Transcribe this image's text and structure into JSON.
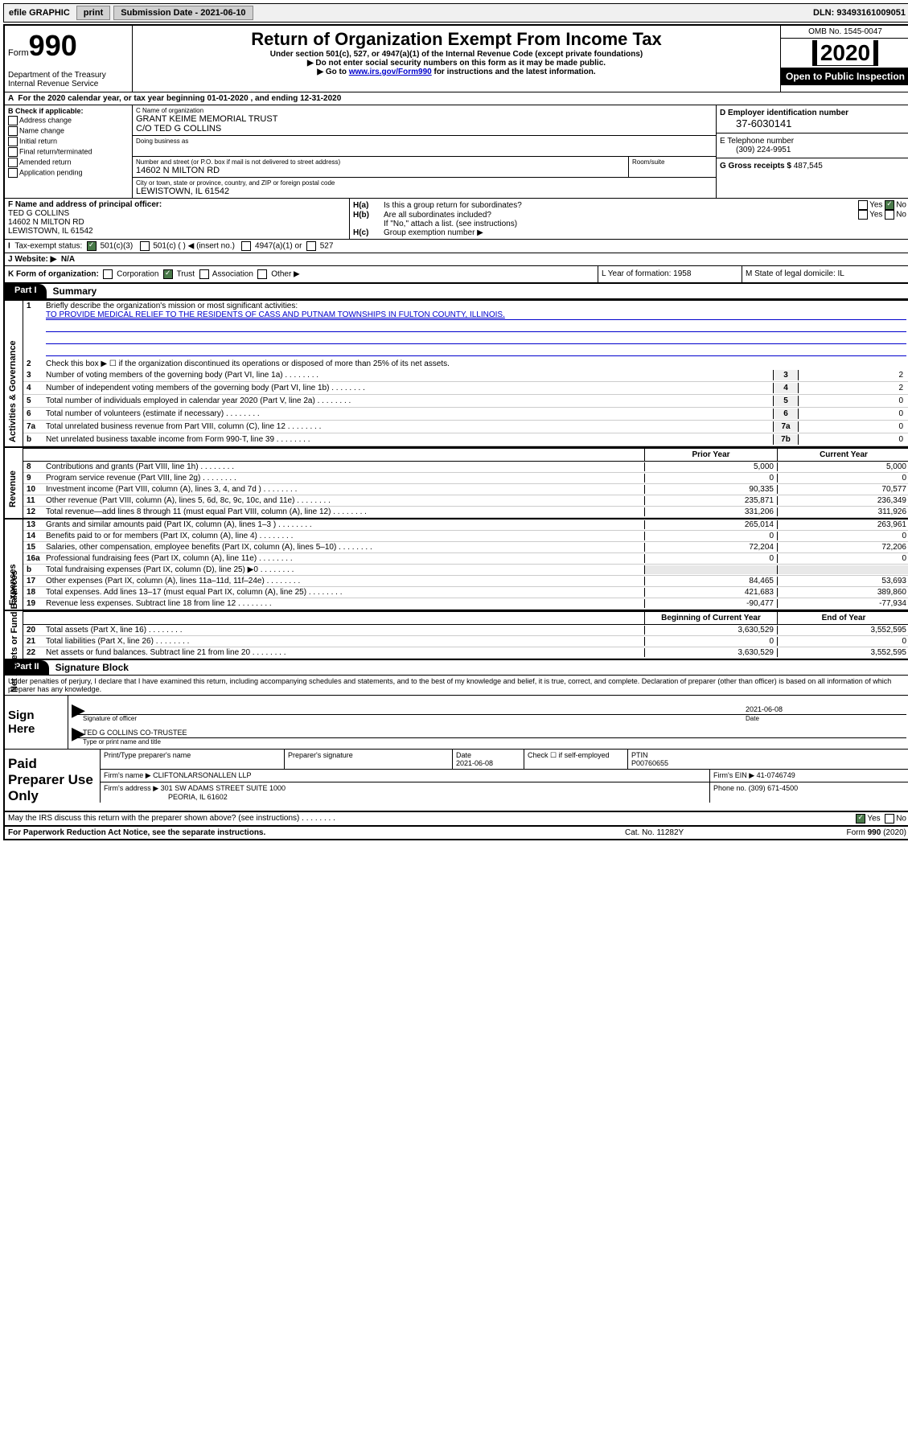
{
  "topbar": {
    "efile": "efile GRAPHIC",
    "print": "print",
    "subdate_label": "Submission Date - ",
    "subdate": "2021-06-10",
    "dln": "DLN: 93493161009051"
  },
  "header": {
    "form_label": "Form",
    "form_num": "990",
    "dept": "Department of the Treasury\nInternal Revenue Service",
    "title": "Return of Organization Exempt From Income Tax",
    "subtitle": "Under section 501(c), 527, or 4947(a)(1) of the Internal Revenue Code (except private foundations)",
    "note1": "Do not enter social security numbers on this form as it may be made public.",
    "note2_pre": "Go to ",
    "note2_link": "www.irs.gov/Form990",
    "note2_post": " for instructions and the latest information.",
    "omb": "OMB No. 1545-0047",
    "year": "2020",
    "open": "Open to Public Inspection"
  },
  "row_a": "For the 2020 calendar year, or tax year beginning 01-01-2020   , and ending 12-31-2020",
  "col_b": {
    "label": "B Check if applicable:",
    "items": [
      "Address change",
      "Name change",
      "Initial return",
      "Final return/terminated",
      "Amended return",
      "Application pending"
    ]
  },
  "org": {
    "name_label": "C Name of organization",
    "name": "GRANT KEIME MEMORIAL TRUST",
    "co": "C/O TED G COLLINS",
    "dba_label": "Doing business as",
    "addr_label": "Number and street (or P.O. box if mail is not delivered to street address)",
    "room_label": "Room/suite",
    "addr": "14602 N MILTON RD",
    "city_label": "City or town, state or province, country, and ZIP or foreign postal code",
    "city": "LEWISTOWN, IL  61542"
  },
  "right_col": {
    "ein_label": "D Employer identification number",
    "ein": "37-6030141",
    "tel_label": "E Telephone number",
    "tel": "(309) 224-9951",
    "gross_label": "G Gross receipts $ ",
    "gross": "487,545"
  },
  "officer": {
    "label": "F  Name and address of principal officer:",
    "name": "TED G COLLINS",
    "addr1": "14602 N MILTON RD",
    "addr2": "LEWISTOWN, IL  61542"
  },
  "h_section": {
    "ha": "Is this a group return for subordinates?",
    "hb": "Are all subordinates included?",
    "hb_note": "If \"No,\" attach a list. (see instructions)",
    "hc": "Group exemption number ▶",
    "yes": "Yes",
    "no": "No"
  },
  "status": {
    "label": "Tax-exempt status:",
    "c3": "501(c)(3)",
    "c": "501(c) (  ) ◀ (insert no.)",
    "a1": "4947(a)(1) or",
    "s527": "527"
  },
  "website": {
    "label": "J   Website: ▶",
    "val": "N/A"
  },
  "k_row": {
    "label": "K Form of organization:",
    "corp": "Corporation",
    "trust": "Trust",
    "assoc": "Association",
    "other": "Other ▶",
    "l": "L Year of formation: 1958",
    "m": "M State of legal domicile: IL"
  },
  "part1": {
    "tab": "Part I",
    "title": "Summary"
  },
  "vtabs": {
    "gov": "Activities & Governance",
    "rev": "Revenue",
    "exp": "Expenses",
    "net": "Net Assets or Fund Balances"
  },
  "mission": {
    "label": "Briefly describe the organization's mission or most significant activities:",
    "text": "TO PROVIDE MEDICAL RELIEF TO THE RESIDENTS OF CASS AND PUTNAM TOWNSHIPS IN FULTON COUNTY, ILLINOIS."
  },
  "lines_single": {
    "2": "Check this box ▶ ☐  if the organization discontinued its operations or disposed of more than 25% of its net assets.",
    "3": {
      "text": "Number of voting members of the governing body (Part VI, line 1a)",
      "val": "2"
    },
    "4": {
      "text": "Number of independent voting members of the governing body (Part VI, line 1b)",
      "val": "2"
    },
    "5": {
      "text": "Total number of individuals employed in calendar year 2020 (Part V, line 2a)",
      "val": "0"
    },
    "6": {
      "text": "Total number of volunteers (estimate if necessary)",
      "val": "0"
    },
    "7a": {
      "text": "Total unrelated business revenue from Part VIII, column (C), line 12",
      "val": "0"
    },
    "7b": {
      "text": "Net unrelated business taxable income from Form 990-T, line 39",
      "val": "0"
    }
  },
  "col_headers": {
    "prior": "Prior Year",
    "curr": "Current Year",
    "boy": "Beginning of Current Year",
    "eoy": "End of Year"
  },
  "revenue": [
    {
      "n": "8",
      "t": "Contributions and grants (Part VIII, line 1h)",
      "p": "5,000",
      "c": "5,000"
    },
    {
      "n": "9",
      "t": "Program service revenue (Part VIII, line 2g)",
      "p": "0",
      "c": "0"
    },
    {
      "n": "10",
      "t": "Investment income (Part VIII, column (A), lines 3, 4, and 7d )",
      "p": "90,335",
      "c": "70,577"
    },
    {
      "n": "11",
      "t": "Other revenue (Part VIII, column (A), lines 5, 6d, 8c, 9c, 10c, and 11e)",
      "p": "235,871",
      "c": "236,349"
    },
    {
      "n": "12",
      "t": "Total revenue—add lines 8 through 11 (must equal Part VIII, column (A), line 12)",
      "p": "331,206",
      "c": "311,926"
    }
  ],
  "expenses": [
    {
      "n": "13",
      "t": "Grants and similar amounts paid (Part IX, column (A), lines 1–3 )",
      "p": "265,014",
      "c": "263,961"
    },
    {
      "n": "14",
      "t": "Benefits paid to or for members (Part IX, column (A), line 4)",
      "p": "0",
      "c": "0"
    },
    {
      "n": "15",
      "t": "Salaries, other compensation, employee benefits (Part IX, column (A), lines 5–10)",
      "p": "72,204",
      "c": "72,206"
    },
    {
      "n": "16a",
      "t": "Professional fundraising fees (Part IX, column (A), line 11e)",
      "p": "0",
      "c": "0"
    },
    {
      "n": "b",
      "t": "Total fundraising expenses (Part IX, column (D), line 25) ▶0",
      "p": "",
      "c": ""
    },
    {
      "n": "17",
      "t": "Other expenses (Part IX, column (A), lines 11a–11d, 11f–24e)",
      "p": "84,465",
      "c": "53,693"
    },
    {
      "n": "18",
      "t": "Total expenses. Add lines 13–17 (must equal Part IX, column (A), line 25)",
      "p": "421,683",
      "c": "389,860"
    },
    {
      "n": "19",
      "t": "Revenue less expenses. Subtract line 18 from line 12",
      "p": "-90,477",
      "c": "-77,934"
    }
  ],
  "netassets": [
    {
      "n": "20",
      "t": "Total assets (Part X, line 16)",
      "p": "3,630,529",
      "c": "3,552,595"
    },
    {
      "n": "21",
      "t": "Total liabilities (Part X, line 26)",
      "p": "0",
      "c": "0"
    },
    {
      "n": "22",
      "t": "Net assets or fund balances. Subtract line 21 from line 20",
      "p": "3,630,529",
      "c": "3,552,595"
    }
  ],
  "part2": {
    "tab": "Part II",
    "title": "Signature Block"
  },
  "perjury": "Under penalties of perjury, I declare that I have examined this return, including accompanying schedules and statements, and to the best of my knowledge and belief, it is true, correct, and complete. Declaration of preparer (other than officer) is based on all information of which preparer has any knowledge.",
  "sign": {
    "here": "Sign Here",
    "sig_label": "Signature of officer",
    "date_label": "Date",
    "date": "2021-06-08",
    "name": "TED G COLLINS CO-TRUSTEE",
    "name_label": "Type or print name and title"
  },
  "prep": {
    "label": "Paid Preparer Use Only",
    "h_name": "Print/Type preparer's name",
    "h_sig": "Preparer's signature",
    "h_date": "Date",
    "date": "2021-06-08",
    "check_label": "Check ☐ if self-employed",
    "ptin_label": "PTIN",
    "ptin": "P00760655",
    "firm_name_label": "Firm's name   ▶",
    "firm_name": "CLIFTONLARSONALLEN LLP",
    "firm_ein_label": "Firm's EIN ▶",
    "firm_ein": "41-0746749",
    "firm_addr_label": "Firm's address ▶",
    "firm_addr1": "301 SW ADAMS STREET SUITE 1000",
    "firm_addr2": "PEORIA, IL  61602",
    "phone_label": "Phone no.",
    "phone": "(309) 671-4500"
  },
  "discuss": {
    "text": "May the IRS discuss this return with the preparer shown above? (see instructions)",
    "yes": "Yes",
    "no": "No"
  },
  "footer": {
    "pra": "For Paperwork Reduction Act Notice, see the separate instructions.",
    "cat": "Cat. No. 11282Y",
    "form": "Form 990 (2020)"
  }
}
